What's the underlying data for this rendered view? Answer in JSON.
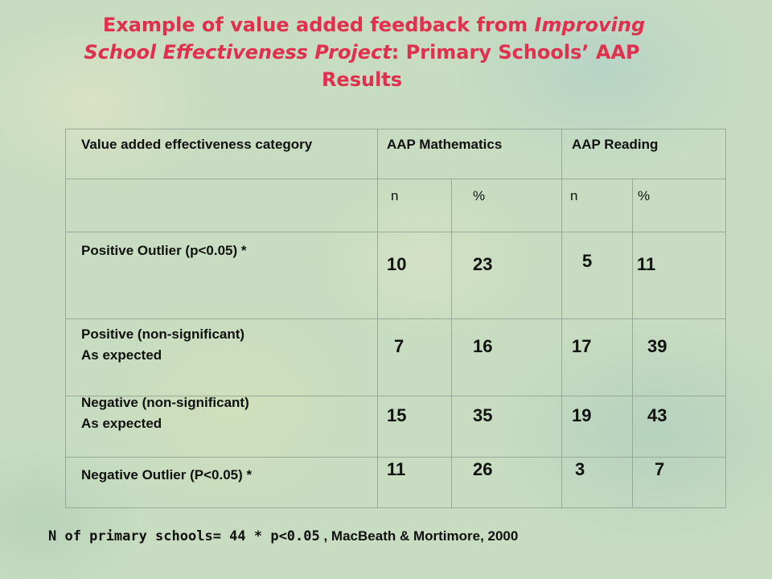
{
  "title": {
    "line1_a": "Example of value added feedback from ",
    "line1_b": "Improving",
    "line2_a": "School Effectiveness Project",
    "line2_b": ": Primary Schools’ AAP",
    "line3": "Results"
  },
  "table": {
    "header": {
      "category": "Value added effectiveness category",
      "math": "AAP Mathematics",
      "reading": "AAP Reading"
    },
    "subheader": {
      "n1": "n",
      "pct1": "%",
      "n2": "n",
      "pct2": "%"
    },
    "rows": [
      {
        "label_1": "Positive Outlier (p<0.05) *",
        "label_2": "",
        "math_n": "10",
        "math_pct": "23",
        "read_n": "5",
        "read_pct": "11"
      },
      {
        "label_1": "Positive (non-significant)",
        "label_2": "As expected",
        "math_n": "7",
        "math_pct": "16",
        "read_n": "17",
        "read_pct": "39"
      },
      {
        "label_1": "Negative (non-significant)",
        "label_2": "As expected",
        "math_n": "15",
        "math_pct": "35",
        "read_n": "19",
        "read_pct": "43"
      },
      {
        "label_1": "Negative Outlier (P<0.05) *",
        "label_2": "",
        "math_n": "11",
        "math_pct": "26",
        "read_n": "3",
        "read_pct": "7"
      }
    ]
  },
  "footer": {
    "part1": "N of primary  schools= 44 * p<0.05",
    "part2": " , MacBeath & Mortimore, 2000"
  }
}
